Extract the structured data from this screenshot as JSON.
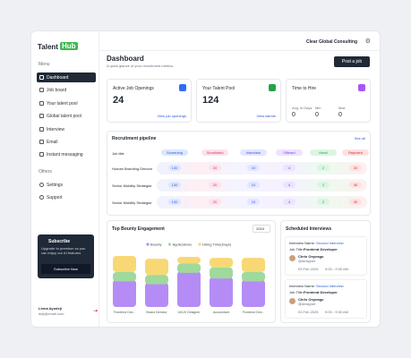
{
  "sidebar": {
    "brand": "Talent",
    "brand_badge": "Hub",
    "menu_label": "Menu",
    "menu": [
      "Dashboard",
      "Job board",
      "Your talent pool",
      "Global talent pool",
      "Interview",
      "Email",
      "Instant messaging"
    ],
    "others_label": "Others",
    "others": [
      "Settings",
      "Support"
    ],
    "promo": {
      "title": "Subscribe",
      "text": "Upgrade to premium so you can enjoy our AI features",
      "button": "Subscribe Now"
    },
    "user": {
      "name": "Linna Ayodeji",
      "email": "deji@email.com"
    }
  },
  "header": {
    "company": "Clear Global Consulting",
    "title": "Dashboard",
    "subtitle": "A quick glance of your recruitment metrics",
    "button": "Post a job"
  },
  "stats": [
    {
      "title": "Active Job Openings",
      "value": 24,
      "link": "View job openings"
    },
    {
      "title": "Your Talent Pool",
      "value": 124,
      "link": "View talents"
    },
    {
      "title": "Time to Hire",
      "metrics": [
        {
          "label": "Avg. in Days",
          "value": 0
        },
        {
          "label": "Min",
          "value": 0
        },
        {
          "label": "Max",
          "value": 0
        }
      ]
    }
  ],
  "pipeline": {
    "title": "Recruitment pipeline",
    "link": "See all",
    "columns": [
      "Job title",
      "Screening",
      "Shortlisted",
      "Interview",
      "Offered",
      "Hired",
      "Rejected"
    ],
    "rows": [
      [
        "Human Branding Director",
        130,
        20,
        10,
        4,
        2,
        20
      ],
      [
        "Senior Mobility Strategist",
        130,
        20,
        10,
        4,
        2,
        30
      ],
      [
        "Senior Mobility Strategist",
        130,
        20,
        10,
        4,
        2,
        30
      ]
    ]
  },
  "chart_data": {
    "type": "bar",
    "stacked": true,
    "title": "Top Bounty Engagement",
    "filter": "2024",
    "categories": [
      "Frontend Dev...",
      "Brand Director",
      "UI/UX Designer",
      "Accountant",
      "Frontend Dev..."
    ],
    "series": [
      {
        "name": "Bounty",
        "color": "#b58cf6",
        "values": [
          27,
          24,
          36,
          30,
          27
        ]
      },
      {
        "name": "Applications",
        "color": "#9fd99b",
        "values": [
          8,
          8,
          8,
          10,
          8
        ]
      },
      {
        "name": "Hiring Time(Days)",
        "color": "#f7d874",
        "values": [
          17,
          17,
          7,
          10,
          15
        ]
      }
    ]
  },
  "interviews": {
    "title": "Scheduled Interviews",
    "items": [
      {
        "name_label": "Interview Name:",
        "name": "Second Interview",
        "job_label": "Job Title:",
        "job": "Frontend Developer",
        "candidate": "Chris Onyeagu",
        "handle": "@designer",
        "date": "03 Feb 2025",
        "time": "9:00 - 9:30 AM"
      },
      {
        "name_label": "Interview Name:",
        "name": "Second Interview",
        "job_label": "Job Title:",
        "job": "Frontend Developer",
        "candidate": "Chris Onyeagu",
        "handle": "@designer",
        "date": "03 Feb 2025",
        "time": "9:00 - 9:30 AM"
      }
    ]
  }
}
